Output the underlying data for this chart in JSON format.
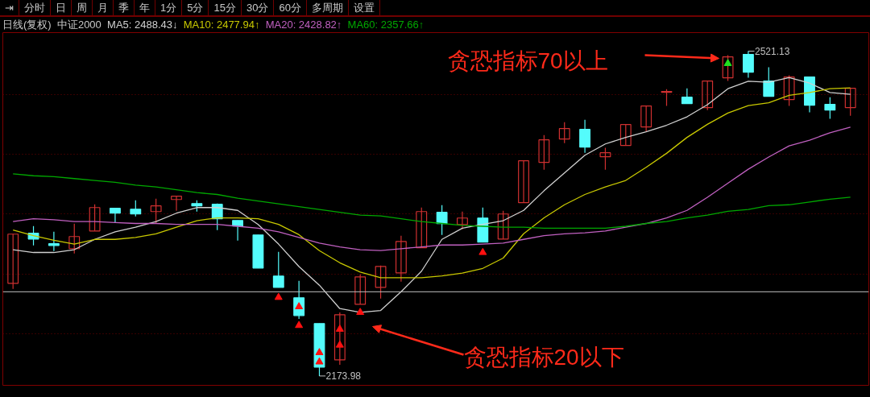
{
  "chart_data": [
    {
      "type": "other",
      "annotations": [
        "⇥",
        "分时",
        "日",
        "周",
        "月",
        "季",
        "年",
        "1分",
        "5分",
        "15分",
        "30分",
        "60分",
        "多周期",
        "设置"
      ]
    },
    {
      "type": "candlestick",
      "title": "日线(复权)",
      "subtitle": "中证2000",
      "categories": [
        null,
        null,
        null,
        null,
        null,
        null,
        null,
        null,
        null,
        null,
        null,
        null,
        null,
        null,
        null,
        null,
        null,
        null,
        null,
        null,
        null,
        null,
        null,
        null,
        null,
        null,
        null,
        null,
        null,
        null,
        null,
        null,
        null,
        null,
        null,
        null,
        null,
        null,
        null,
        null,
        null,
        null
      ],
      "ohlc": [
        [
          2273.0,
          2325.6,
          2267.0,
          2325.6
        ],
        [
          2326.5,
          2334.2,
          2313.5,
          2320.4
        ],
        [
          2315.3,
          2328.2,
          2307.5,
          2313.5
        ],
        [
          2310.1,
          2336.8,
          2304.9,
          2323.0
        ],
        [
          2329.0,
          2357.5,
          2329.0,
          2354.0
        ],
        [
          2353.2,
          2353.2,
          2337.7,
          2348.0
        ],
        [
          2352.3,
          2361.8,
          2344.5,
          2347.1
        ],
        [
          2349.7,
          2363.5,
          2336.8,
          2355.8
        ],
        [
          2362.6,
          2366.1,
          2350.6,
          2366.1
        ],
        [
          2358.3,
          2361.8,
          2349.7,
          2355.8
        ],
        [
          2357.5,
          2358.3,
          2329.9,
          2342.0
        ],
        [
          2340.2,
          2340.2,
          2318.7,
          2334.2
        ],
        [
          2324.7,
          2324.7,
          2289.4,
          2289.4
        ],
        [
          2280.8,
          2306.6,
          2268.7,
          2268.7
        ],
        [
          2257.5,
          2275.6,
          2235.1,
          2238.6
        ],
        [
          2230.0,
          2230.0,
          2173.98,
          2183.5
        ],
        [
          2191.2,
          2242.0,
          2186.0,
          2239.5
        ],
        [
          2250.6,
          2282.5,
          2250.6,
          2279.9
        ],
        [
          2268.7,
          2292.0,
          2256.7,
          2291.1
        ],
        [
          2284.2,
          2323.9,
          2274.8,
          2317.8
        ],
        [
          2311.0,
          2354.0,
          2311.0,
          2349.7
        ],
        [
          2348.9,
          2356.6,
          2324.7,
          2336.8
        ],
        [
          2335.9,
          2349.7,
          2330.8,
          2342.8
        ],
        [
          2342.8,
          2354.0,
          2317.0,
          2317.0
        ],
        [
          2320.4,
          2350.6,
          2320.4,
          2347.1
        ],
        [
          2359.2,
          2404.0,
          2359.2,
          2404.0
        ],
        [
          2402.3,
          2431.5,
          2394.5,
          2426.4
        ],
        [
          2427.2,
          2445.3,
          2422.9,
          2438.4
        ],
        [
          2437.6,
          2447.9,
          2412.6,
          2418.6
        ],
        [
          2408.3,
          2417.9,
          2394.5,
          2412.6
        ],
        [
          2420.4,
          2442.7,
          2420.4,
          2442.7
        ],
        [
          2440.2,
          2462.6,
          2435.0,
          2462.6
        ],
        [
          2477.2,
          2480.6,
          2462.6,
          2478.1
        ],
        [
          2472.0,
          2481.5,
          2465.1,
          2465.1
        ],
        [
          2460.8,
          2489.3,
          2458.2,
          2489.3
        ],
        [
          2492.7,
          2516.8,
          2489.3,
          2515.1
        ],
        [
          2517.7,
          2521.13,
          2492.7,
          2498.7
        ],
        [
          2489.3,
          2503.9,
          2472.9,
          2472.9
        ],
        [
          2469.4,
          2495.3,
          2462.6,
          2493.6
        ],
        [
          2493.6,
          2493.6,
          2455.7,
          2463.4
        ],
        [
          2464.3,
          2472.0,
          2448.8,
          2458.2
        ],
        [
          2460.8,
          2481.5,
          2452.2,
          2481.5
        ]
      ],
      "colors": [
        "#d03030",
        "#54fcfc",
        "#54fcfc",
        "#d03030",
        "#d03030",
        "#54fcfc",
        "#54fcfc",
        "#d03030",
        "#d03030",
        "#54fcfc",
        "#54fcfc",
        "#54fcfc",
        "#54fcfc",
        "#54fcfc",
        "#54fcfc",
        "#54fcfc",
        "#d03030",
        "#d03030",
        "#d03030",
        "#d03030",
        "#d03030",
        "#54fcfc",
        "#d03030",
        "#54fcfc",
        "#d03030",
        "#d03030",
        "#d03030",
        "#d03030",
        "#54fcfc",
        "#d03030",
        "#d03030",
        "#d03030",
        "#d03030",
        "#54fcfc",
        "#d03030",
        "#d03030",
        "#54fcfc",
        "#54fcfc",
        "#d03030",
        "#54fcfc",
        "#54fcfc",
        "#d03030"
      ],
      "series": [
        {
          "type": "line",
          "name": "MA5: 2488.43↓",
          "color": "#d0d0d0",
          "values": [
            2309,
            2306,
            2306,
            2309,
            2320,
            2328,
            2333,
            2339,
            2348,
            2354,
            2354,
            2351,
            2336,
            2315,
            2291,
            2271,
            2246,
            2242,
            2244,
            2264,
            2286,
            2320,
            2332,
            2336,
            2340,
            2351,
            2372,
            2391,
            2410,
            2422,
            2429,
            2435,
            2442,
            2451,
            2464,
            2481,
            2489,
            2488,
            2493,
            2487,
            2477,
            2475
          ]
        },
        {
          "type": "line",
          "name": "MA10: 2477.94↑",
          "color": "#c8c800",
          "values": [
            2330,
            2324,
            2319,
            2315,
            2320,
            2320,
            2322,
            2326,
            2333,
            2340,
            2343,
            2343,
            2342,
            2336,
            2325,
            2308,
            2295,
            2285,
            2279,
            2279,
            2279,
            2281,
            2284,
            2289,
            2300,
            2326,
            2343,
            2357,
            2368,
            2376,
            2383,
            2397,
            2412,
            2429,
            2443,
            2455,
            2463,
            2466,
            2474,
            2477,
            2481,
            2482
          ]
        },
        {
          "type": "line",
          "name": "MA20: 2428.82↑",
          "color": "#c060c0",
          "values": [
            2339,
            2342,
            2341,
            2339,
            2339,
            2338,
            2337,
            2337,
            2336,
            2336,
            2336,
            2334,
            2332,
            2328,
            2322,
            2316,
            2312,
            2309,
            2308,
            2310,
            2312,
            2314,
            2314,
            2315,
            2316,
            2320,
            2324,
            2326,
            2327,
            2329,
            2333,
            2337,
            2343,
            2351,
            2365,
            2380,
            2395,
            2408,
            2420,
            2426,
            2434,
            2440
          ]
        },
        {
          "type": "line",
          "name": "MA60: 2357.66↑",
          "color": "#00a800",
          "values": [
            2390,
            2388,
            2387,
            2385,
            2383,
            2381,
            2378,
            2376,
            2373,
            2370,
            2368,
            2364,
            2361,
            2358,
            2355,
            2352,
            2349,
            2346,
            2345,
            2342,
            2339,
            2337,
            2335,
            2334,
            2333,
            2333,
            2332,
            2332,
            2332,
            2332,
            2334,
            2337,
            2339,
            2343,
            2346,
            2350,
            2352,
            2356,
            2357,
            2360,
            2363,
            2365
          ]
        },
        {
          "type": "scatter",
          "marker": "triangle",
          "color": "#ff1010",
          "values": [
            null,
            null,
            null,
            null,
            null,
            null,
            null,
            null,
            null,
            null,
            null,
            null,
            null,
            2258,
            2248,
            2199,
            2224,
            2242,
            null,
            null,
            null,
            null,
            null,
            2306,
            null,
            null,
            null,
            null,
            null,
            null,
            null,
            null,
            null,
            null,
            null,
            null,
            null,
            null,
            null,
            null,
            null,
            null
          ]
        },
        {
          "type": "scatter",
          "marker": "triangle",
          "color": "#ff1010",
          "values": [
            null,
            null,
            null,
            null,
            null,
            null,
            null,
            null,
            null,
            null,
            null,
            null,
            null,
            null,
            2228,
            2189,
            2207,
            null,
            null,
            null,
            null,
            null,
            null,
            null,
            null,
            null,
            null,
            null,
            null,
            null,
            null,
            null,
            null,
            null,
            null,
            null,
            null,
            null,
            null,
            null,
            null,
            null
          ]
        },
        {
          "type": "scatter",
          "marker": "triangle",
          "color": "#20e020",
          "values": [
            null,
            null,
            null,
            null,
            null,
            null,
            null,
            null,
            null,
            null,
            null,
            null,
            null,
            null,
            null,
            null,
            null,
            null,
            null,
            null,
            null,
            null,
            null,
            null,
            null,
            null,
            null,
            null,
            null,
            null,
            null,
            null,
            null,
            null,
            null,
            2508,
            null,
            null,
            null,
            null,
            null,
            null
          ]
        }
      ],
      "ylim": [
        2164,
        2541
      ],
      "yticks": [
        {
          "value": 2475,
          "label": null
        },
        {
          "value": 2411,
          "label": null
        },
        {
          "value": 2347,
          "label": null
        },
        {
          "value": 2283,
          "label": null
        },
        {
          "value": 2219,
          "label": null
        }
      ],
      "grid": "y",
      "tick_labels": false,
      "legend": "top",
      "ref_lines": [
        {
          "axis": "y",
          "value": 2264,
          "color": "#c0c0c0"
        }
      ],
      "annotations": [
        "贪恐指标70以上",
        "贪恐指标20以下",
        "2521.13",
        "2173.98"
      ]
    }
  ]
}
